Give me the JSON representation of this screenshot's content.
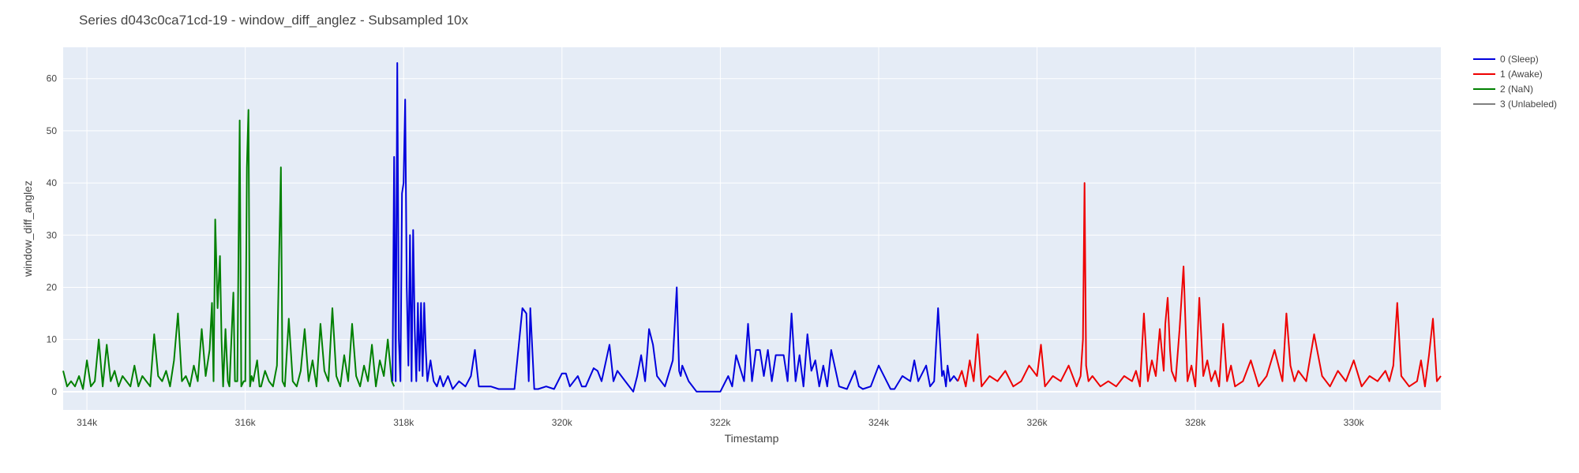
{
  "chart_data": {
    "type": "line",
    "title": "Series d043c0ca71cd-19 - window_diff_anglez - Subsampled 10x",
    "xlabel": "Timestamp",
    "ylabel": "window_diff_anglez",
    "xlim": [
      313700,
      331100
    ],
    "ylim": [
      -3.5,
      66
    ],
    "x_ticks": [
      314000,
      316000,
      318000,
      320000,
      322000,
      324000,
      326000,
      328000,
      330000
    ],
    "x_tick_labels": [
      "314k",
      "316k",
      "318k",
      "320k",
      "322k",
      "324k",
      "326k",
      "328k",
      "330k"
    ],
    "y_ticks": [
      0,
      10,
      20,
      30,
      40,
      50,
      60
    ],
    "y_tick_labels": [
      "0",
      "10",
      "20",
      "30",
      "40",
      "50",
      "60"
    ],
    "grid": true,
    "legend_position": "top-right",
    "series": [
      {
        "name": "0 (Sleep)",
        "color": "#0000dd",
        "x": [
          317860,
          317880,
          317900,
          317920,
          317940,
          317960,
          317980,
          318000,
          318020,
          318040,
          318060,
          318080,
          318100,
          318120,
          318140,
          318160,
          318180,
          318200,
          318220,
          318240,
          318260,
          318280,
          318300,
          318340,
          318380,
          318420,
          318460,
          318500,
          318560,
          318620,
          318700,
          318780,
          318850,
          318900,
          318950,
          319000,
          319100,
          319200,
          319300,
          319400,
          319500,
          319550,
          319580,
          319600,
          319650,
          319700,
          319800,
          319900,
          320000,
          320050,
          320100,
          320200,
          320250,
          320300,
          320400,
          320450,
          320500,
          320600,
          320650,
          320700,
          320800,
          320900,
          320950,
          321000,
          321050,
          321100,
          321150,
          321200,
          321300,
          321400,
          321450,
          321480,
          321500,
          321520,
          321600,
          321700,
          321800,
          322000,
          322100,
          322150,
          322200,
          322300,
          322350,
          322400,
          322450,
          322500,
          322550,
          322600,
          322650,
          322700,
          322800,
          322850,
          322900,
          322950,
          323000,
          323050,
          323100,
          323150,
          323200,
          323250,
          323300,
          323350,
          323400,
          323500,
          323600,
          323700,
          323750,
          323800,
          323900,
          324000,
          324100,
          324150,
          324200,
          324300,
          324400,
          324450,
          324500,
          324600,
          324650,
          324700,
          324750,
          324800,
          324820,
          324850,
          324870,
          324900,
          324950,
          325000
        ],
        "y": [
          2,
          45,
          2,
          63,
          10,
          2,
          38,
          40,
          56,
          20,
          5,
          30,
          2,
          31,
          12,
          2,
          17,
          4,
          17,
          3,
          17,
          8,
          2,
          6,
          2,
          1,
          3,
          1,
          3,
          0.5,
          2,
          1,
          3,
          8,
          1,
          1,
          1,
          0.5,
          0.5,
          0.5,
          16,
          15,
          2,
          16,
          0.5,
          0.5,
          1,
          0.5,
          3.5,
          3.5,
          1,
          3,
          1,
          1,
          4.5,
          4,
          2,
          9,
          2,
          4,
          2,
          0,
          3,
          7,
          2,
          12,
          9,
          3,
          1,
          6,
          20,
          4,
          3,
          5,
          2,
          0,
          0,
          0,
          3,
          1,
          7,
          2,
          13,
          2,
          8,
          8,
          3,
          8,
          2,
          7,
          7,
          2,
          15,
          2,
          7,
          1,
          11,
          4,
          6,
          1,
          5,
          1,
          8,
          1,
          0.5,
          4,
          1,
          0.5,
          1,
          5,
          2,
          0.5,
          0.5,
          3,
          2,
          6,
          2,
          5,
          1,
          2,
          16,
          3,
          4,
          1,
          5,
          2,
          3,
          2
        ]
      },
      {
        "name": "1 (Awake)",
        "color": "#ee0000",
        "x": [
          325000,
          325050,
          325100,
          325150,
          325200,
          325250,
          325300,
          325400,
          325500,
          325600,
          325700,
          325800,
          325900,
          326000,
          326050,
          326100,
          326200,
          326300,
          326400,
          326500,
          326550,
          326580,
          326600,
          326620,
          326650,
          326700,
          326800,
          326900,
          327000,
          327100,
          327200,
          327250,
          327300,
          327350,
          327400,
          327450,
          327500,
          327550,
          327600,
          327620,
          327650,
          327680,
          327700,
          327750,
          327800,
          327850,
          327900,
          327950,
          328000,
          328050,
          328100,
          328150,
          328200,
          328250,
          328300,
          328350,
          328400,
          328450,
          328500,
          328600,
          328700,
          328800,
          328900,
          329000,
          329100,
          329150,
          329200,
          329250,
          329300,
          329400,
          329500,
          329600,
          329700,
          329800,
          329900,
          330000,
          330100,
          330200,
          330300,
          330400,
          330450,
          330500,
          330550,
          330600,
          330700,
          330800,
          330850,
          330900,
          330950,
          331000,
          331050,
          331100
        ],
        "y": [
          2,
          4,
          1,
          6,
          2,
          11,
          1,
          3,
          2,
          4,
          1,
          2,
          5,
          3,
          9,
          1,
          3,
          2,
          5,
          1,
          3,
          10,
          40,
          5,
          2,
          3,
          1,
          2,
          1,
          3,
          2,
          4,
          1,
          15,
          2,
          6,
          3,
          12,
          4,
          13,
          18,
          8,
          4,
          2,
          12,
          24,
          2,
          5,
          1,
          18,
          3,
          6,
          2,
          4,
          1,
          13,
          2,
          5,
          1,
          2,
          6,
          1,
          3,
          8,
          2,
          15,
          5,
          2,
          4,
          2,
          11,
          3,
          1,
          4,
          2,
          6,
          1,
          3,
          2,
          4,
          2,
          5,
          17,
          3,
          1,
          2,
          6,
          1,
          7,
          14,
          2,
          3
        ]
      },
      {
        "name": "2 (NaN)",
        "color": "#008000",
        "x": [
          313700,
          313750,
          313800,
          313850,
          313900,
          313950,
          314000,
          314050,
          314100,
          314150,
          314200,
          314250,
          314300,
          314350,
          314400,
          314450,
          314500,
          314550,
          314600,
          314650,
          314700,
          314750,
          314800,
          314850,
          314900,
          314950,
          315000,
          315050,
          315100,
          315150,
          315200,
          315250,
          315300,
          315350,
          315400,
          315450,
          315500,
          315550,
          315580,
          315600,
          315620,
          315650,
          315680,
          315700,
          315720,
          315750,
          315780,
          315800,
          315850,
          315870,
          315900,
          315930,
          315950,
          315980,
          316000,
          316020,
          316040,
          316060,
          316080,
          316100,
          316150,
          316180,
          316200,
          316250,
          316300,
          316350,
          316400,
          316450,
          316470,
          316500,
          316550,
          316600,
          316650,
          316700,
          316750,
          316800,
          316850,
          316900,
          316950,
          317000,
          317050,
          317100,
          317150,
          317200,
          317250,
          317300,
          317350,
          317400,
          317450,
          317500,
          317550,
          317600,
          317650,
          317700,
          317750,
          317800,
          317850,
          317880
        ],
        "y": [
          4,
          1,
          2,
          1,
          3,
          0.5,
          6,
          1,
          2,
          10,
          1,
          9,
          2,
          4,
          1,
          3,
          2,
          1,
          5,
          1,
          3,
          2,
          1,
          11,
          3,
          2,
          4,
          1,
          6,
          15,
          2,
          3,
          1,
          5,
          2,
          12,
          3,
          8,
          17,
          2,
          33,
          16,
          26,
          10,
          1,
          12,
          2,
          1,
          19,
          2,
          2,
          52,
          1,
          2,
          2,
          43,
          54,
          1,
          3,
          2,
          6,
          1,
          1,
          4,
          2,
          1,
          5,
          43,
          2,
          1,
          14,
          2,
          1,
          4,
          12,
          2,
          6,
          1,
          13,
          4,
          2,
          16,
          3,
          1,
          7,
          2,
          13,
          3,
          1,
          5,
          2,
          9,
          1,
          6,
          3,
          10,
          2,
          1
        ]
      },
      {
        "name": "3 (Unlabeled)",
        "color": "#808080",
        "x": [],
        "y": []
      }
    ]
  }
}
